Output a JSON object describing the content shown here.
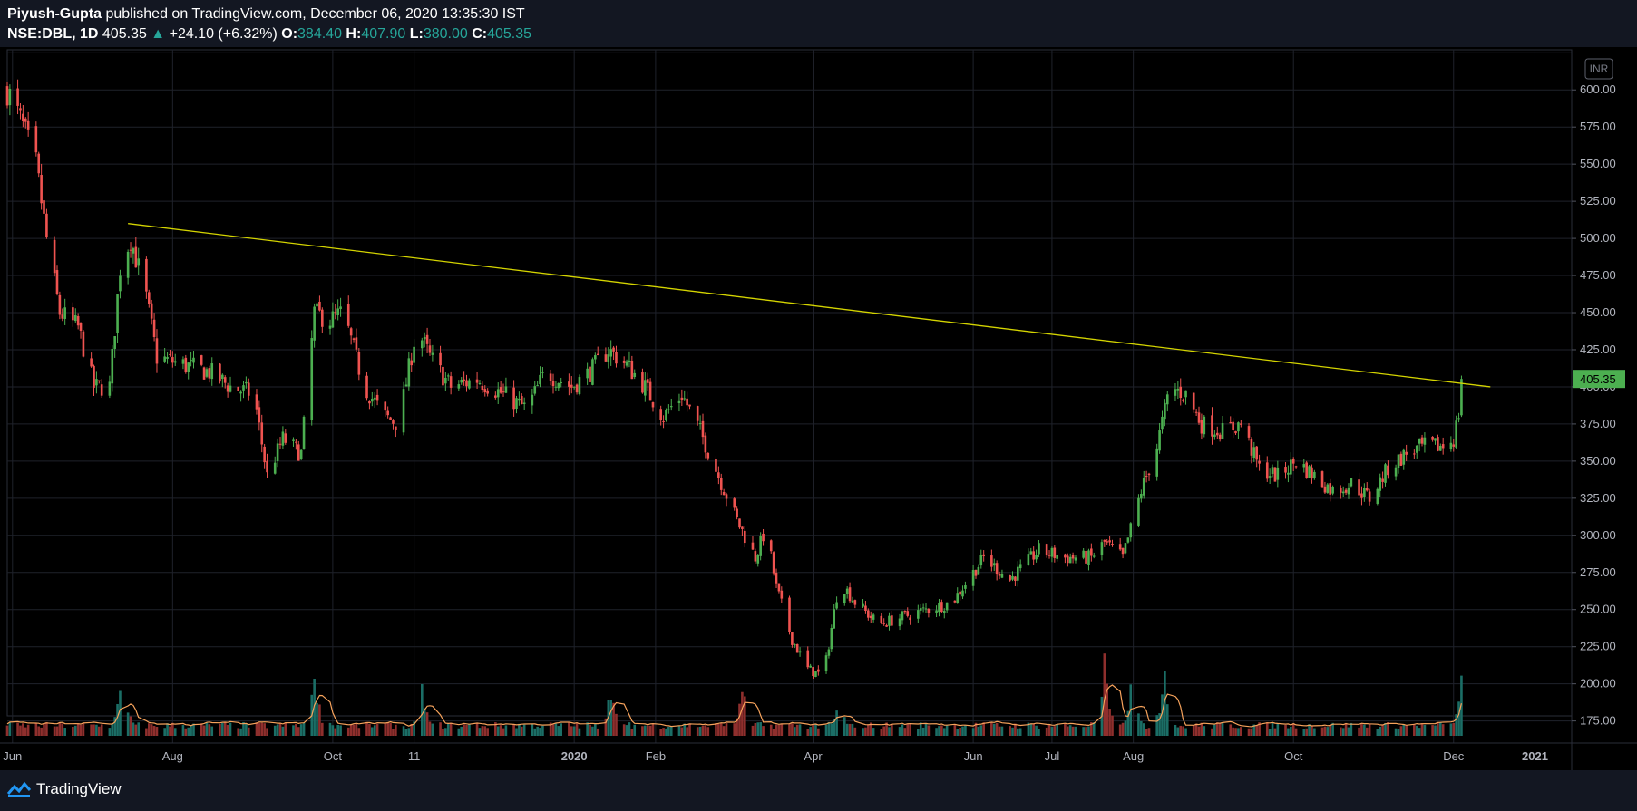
{
  "header": {
    "author": "Piyush-Gupta",
    "published_text": "published on TradingView.com, December 06, 2020 13:35:30 IST",
    "symbol": "NSE:DBL, 1D",
    "last": "405.35",
    "change": "+24.10 (+6.32%)",
    "open_label": "O:",
    "open": "384.40",
    "high_label": "H:",
    "high": "407.90",
    "low_label": "L:",
    "low": "380.00",
    "close_label": "C:",
    "close": "405.35"
  },
  "footer": {
    "brand": "TradingView"
  },
  "chart_data": {
    "type": "candlestick",
    "symbol": "NSE:DBL",
    "interval": "1D",
    "currency": "INR",
    "y_ticks": [
      175,
      200,
      225,
      250,
      275,
      300,
      325,
      350,
      375,
      400,
      425,
      450,
      475,
      500,
      525,
      550,
      575,
      600,
      625
    ],
    "ylim": [
      165,
      627
    ],
    "x_labels": [
      {
        "date": "2019-06-01",
        "label": "Jun"
      },
      {
        "date": "2019-08-01",
        "label": "Aug"
      },
      {
        "date": "2019-10-01",
        "label": "Oct"
      },
      {
        "date": "2019-11-01",
        "label": "11"
      },
      {
        "date": "2020-01-01",
        "label": "2020"
      },
      {
        "date": "2020-02-01",
        "label": "Feb"
      },
      {
        "date": "2020-04-01",
        "label": "Apr"
      },
      {
        "date": "2020-06-01",
        "label": "Jun"
      },
      {
        "date": "2020-07-01",
        "label": "Jul"
      },
      {
        "date": "2020-08-01",
        "label": "Aug"
      },
      {
        "date": "2020-10-01",
        "label": "Oct"
      },
      {
        "date": "2020-12-01",
        "label": "Dec"
      },
      {
        "date": "2021-01-01",
        "label": "2021"
      }
    ],
    "x_range": [
      "2019-05-30",
      "2021-01-15"
    ],
    "last_price": 405.35,
    "price_path": [
      {
        "date": "2019-05-30",
        "close": 600
      },
      {
        "date": "2019-06-04",
        "close": 580
      },
      {
        "date": "2019-06-10",
        "close": 550
      },
      {
        "date": "2019-06-14",
        "close": 500
      },
      {
        "date": "2019-06-19",
        "close": 450
      },
      {
        "date": "2019-06-26",
        "close": 440
      },
      {
        "date": "2019-07-02",
        "close": 400
      },
      {
        "date": "2019-07-08",
        "close": 400
      },
      {
        "date": "2019-07-12",
        "close": 480
      },
      {
        "date": "2019-07-16",
        "close": 500
      },
      {
        "date": "2019-07-22",
        "close": 460
      },
      {
        "date": "2019-07-26",
        "close": 420
      },
      {
        "date": "2019-08-05",
        "close": 415
      },
      {
        "date": "2019-08-15",
        "close": 410
      },
      {
        "date": "2019-08-23",
        "close": 400
      },
      {
        "date": "2019-09-01",
        "close": 395
      },
      {
        "date": "2019-09-06",
        "close": 340
      },
      {
        "date": "2019-09-12",
        "close": 365
      },
      {
        "date": "2019-09-19",
        "close": 355
      },
      {
        "date": "2019-09-24",
        "close": 450
      },
      {
        "date": "2019-09-30",
        "close": 445
      },
      {
        "date": "2019-10-05",
        "close": 450
      },
      {
        "date": "2019-10-13",
        "close": 400
      },
      {
        "date": "2019-10-21",
        "close": 380
      },
      {
        "date": "2019-10-26",
        "close": 375
      },
      {
        "date": "2019-11-02",
        "close": 440
      },
      {
        "date": "2019-11-07",
        "close": 420
      },
      {
        "date": "2019-11-15",
        "close": 400
      },
      {
        "date": "2019-11-25",
        "close": 405
      },
      {
        "date": "2019-12-05",
        "close": 395
      },
      {
        "date": "2019-12-14",
        "close": 385
      },
      {
        "date": "2019-12-21",
        "close": 410
      },
      {
        "date": "2019-12-31",
        "close": 400
      },
      {
        "date": "2020-01-07",
        "close": 410
      },
      {
        "date": "2020-01-14",
        "close": 425
      },
      {
        "date": "2020-01-21",
        "close": 415
      },
      {
        "date": "2020-01-28",
        "close": 400
      },
      {
        "date": "2020-02-04",
        "close": 380
      },
      {
        "date": "2020-02-11",
        "close": 395
      },
      {
        "date": "2020-02-18",
        "close": 370
      },
      {
        "date": "2020-02-25",
        "close": 340
      },
      {
        "date": "2020-03-03",
        "close": 310
      },
      {
        "date": "2020-03-10",
        "close": 285
      },
      {
        "date": "2020-03-14",
        "close": 305
      },
      {
        "date": "2020-03-18",
        "close": 265
      },
      {
        "date": "2020-03-24",
        "close": 230
      },
      {
        "date": "2020-03-30",
        "close": 210
      },
      {
        "date": "2020-04-05",
        "close": 205
      },
      {
        "date": "2020-04-11",
        "close": 270
      },
      {
        "date": "2020-04-17",
        "close": 255
      },
      {
        "date": "2020-04-26",
        "close": 240
      },
      {
        "date": "2020-05-05",
        "close": 245
      },
      {
        "date": "2020-05-14",
        "close": 250
      },
      {
        "date": "2020-05-24",
        "close": 255
      },
      {
        "date": "2020-06-05",
        "close": 285
      },
      {
        "date": "2020-06-15",
        "close": 270
      },
      {
        "date": "2020-06-26",
        "close": 290
      },
      {
        "date": "2020-07-06",
        "close": 285
      },
      {
        "date": "2020-07-16",
        "close": 285
      },
      {
        "date": "2020-07-21",
        "close": 295
      },
      {
        "date": "2020-07-28",
        "close": 285
      },
      {
        "date": "2020-08-04",
        "close": 330
      },
      {
        "date": "2020-08-10",
        "close": 360
      },
      {
        "date": "2020-08-15",
        "close": 400
      },
      {
        "date": "2020-08-21",
        "close": 395
      },
      {
        "date": "2020-08-27",
        "close": 375
      },
      {
        "date": "2020-09-04",
        "close": 370
      },
      {
        "date": "2020-09-11",
        "close": 375
      },
      {
        "date": "2020-09-18",
        "close": 345
      },
      {
        "date": "2020-09-25",
        "close": 340
      },
      {
        "date": "2020-10-02",
        "close": 350
      },
      {
        "date": "2020-10-09",
        "close": 340
      },
      {
        "date": "2020-10-16",
        "close": 330
      },
      {
        "date": "2020-10-23",
        "close": 335
      },
      {
        "date": "2020-10-30",
        "close": 325
      },
      {
        "date": "2020-11-06",
        "close": 345
      },
      {
        "date": "2020-11-13",
        "close": 355
      },
      {
        "date": "2020-11-20",
        "close": 360
      },
      {
        "date": "2020-11-27",
        "close": 360
      },
      {
        "date": "2020-12-01",
        "close": 365
      },
      {
        "date": "2020-12-03",
        "close": 382
      },
      {
        "date": "2020-12-04",
        "close": 405.35
      }
    ],
    "trendline": {
      "from": {
        "date": "2019-07-15",
        "price": 510
      },
      "to": {
        "date": "2020-12-15",
        "price": 400
      }
    },
    "volume_spikes": [
      {
        "date": "2019-07-13",
        "level": 1.0
      },
      {
        "date": "2019-09-24",
        "level": 0.95
      },
      {
        "date": "2019-11-04",
        "level": 0.7
      },
      {
        "date": "2020-01-15",
        "level": 0.7
      },
      {
        "date": "2020-03-05",
        "level": 0.75
      },
      {
        "date": "2020-04-11",
        "level": 0.6
      },
      {
        "date": "2020-07-21",
        "level": 1.0
      },
      {
        "date": "2020-08-01",
        "level": 1.0
      },
      {
        "date": "2020-08-13",
        "level": 0.95
      },
      {
        "date": "2020-12-04",
        "level": 0.75
      }
    ],
    "colors": {
      "up": "#26a69a",
      "down": "#ef5350",
      "up_wick": "#4caf50",
      "trendline": "#d4d400",
      "volume_ma": "#f7a35c",
      "price_label_bg": "#4caf50"
    }
  }
}
